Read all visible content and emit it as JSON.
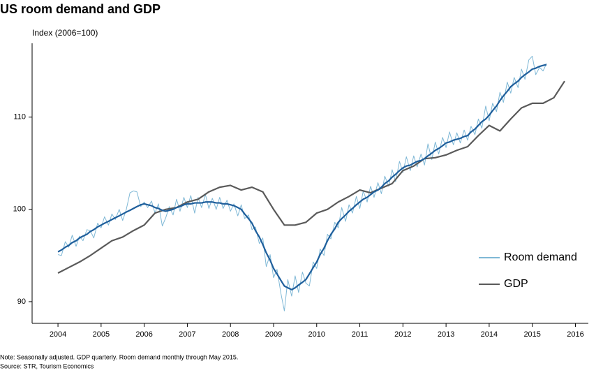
{
  "chart_data": {
    "type": "line",
    "title": "US room demand and GDP",
    "y_label": "Index (2006=100)",
    "notes": [
      "Note: Seasonally adjusted. GDP quarterly. Room demand monthly through May 2015.",
      "Source: STR, Tourism Economics"
    ],
    "xlim": [
      2003.4,
      2016.3
    ],
    "ylim": [
      87.65,
      118
    ],
    "xticks": [
      2004,
      2005,
      2006,
      2007,
      2008,
      2009,
      2010,
      2011,
      2012,
      2013,
      2014,
      2015,
      2016
    ],
    "yticks": [
      90,
      100,
      110
    ],
    "grid": false,
    "legend": "right",
    "series": [
      {
        "name": "Room demand",
        "color": "#7fb8d6",
        "width": 1,
        "x": [
          2004,
          2004.08,
          2004.17,
          2004.25,
          2004.33,
          2004.42,
          2004.5,
          2004.58,
          2004.67,
          2004.75,
          2004.83,
          2004.92,
          2005,
          2005.08,
          2005.17,
          2005.25,
          2005.33,
          2005.42,
          2005.5,
          2005.58,
          2005.67,
          2005.75,
          2005.83,
          2005.92,
          2006,
          2006.08,
          2006.17,
          2006.25,
          2006.33,
          2006.42,
          2006.5,
          2006.58,
          2006.67,
          2006.75,
          2006.83,
          2006.92,
          2007,
          2007.08,
          2007.17,
          2007.25,
          2007.33,
          2007.42,
          2007.5,
          2007.58,
          2007.67,
          2007.75,
          2007.83,
          2007.92,
          2008,
          2008.08,
          2008.17,
          2008.25,
          2008.33,
          2008.42,
          2008.5,
          2008.58,
          2008.67,
          2008.75,
          2008.83,
          2008.92,
          2009,
          2009.08,
          2009.17,
          2009.25,
          2009.33,
          2009.42,
          2009.5,
          2009.58,
          2009.67,
          2009.75,
          2009.83,
          2009.92,
          2010,
          2010.08,
          2010.17,
          2010.25,
          2010.33,
          2010.42,
          2010.5,
          2010.58,
          2010.67,
          2010.75,
          2010.83,
          2010.92,
          2011,
          2011.08,
          2011.17,
          2011.25,
          2011.33,
          2011.42,
          2011.5,
          2011.58,
          2011.67,
          2011.75,
          2011.83,
          2011.92,
          2012,
          2012.08,
          2012.17,
          2012.25,
          2012.33,
          2012.42,
          2012.5,
          2012.58,
          2012.67,
          2012.75,
          2012.83,
          2012.92,
          2013,
          2013.08,
          2013.17,
          2013.25,
          2013.33,
          2013.42,
          2013.5,
          2013.58,
          2013.67,
          2013.75,
          2013.83,
          2013.92,
          2014,
          2014.08,
          2014.17,
          2014.25,
          2014.33,
          2014.42,
          2014.5,
          2014.58,
          2014.67,
          2014.75,
          2014.83,
          2014.92,
          2015,
          2015.08,
          2015.17,
          2015.25,
          2015.33
        ],
        "values": [
          95.1,
          95.0,
          96.5,
          95.9,
          97.2,
          96.0,
          97.1,
          96.6,
          97.8,
          97.7,
          96.9,
          98.5,
          98.0,
          99.2,
          98.3,
          99.5,
          98.9,
          100.0,
          98.8,
          99.9,
          101.8,
          102.0,
          101.9,
          100.3,
          100.8,
          100.2,
          100.9,
          99.6,
          100.6,
          98.2,
          99.1,
          100.3,
          99.4,
          101.1,
          99.8,
          101.3,
          100.2,
          101.5,
          99.6,
          101.3,
          100.2,
          101.6,
          100.1,
          101.2,
          100.0,
          101.3,
          100.1,
          101.0,
          99.8,
          100.6,
          99.3,
          100.5,
          99.0,
          99.4,
          97.8,
          98.1,
          96.3,
          96.9,
          93.8,
          95.1,
          92.6,
          93.5,
          90.9,
          89.0,
          92.4,
          90.6,
          92.8,
          91.0,
          93.2,
          92.0,
          91.7,
          94.3,
          93.6,
          95.7,
          95.0,
          97.3,
          96.8,
          98.6,
          98.0,
          100.2,
          98.7,
          100.5,
          99.6,
          101.4,
          100.1,
          102.0,
          100.8,
          102.5,
          101.3,
          102.9,
          101.7,
          103.6,
          102.5,
          104.3,
          103.0,
          105.2,
          104.0,
          105.7,
          104.2,
          105.8,
          104.6,
          106.0,
          104.8,
          107.1,
          105.4,
          107.3,
          106.0,
          107.8,
          106.7,
          108.4,
          107.0,
          108.3,
          107.2,
          108.6,
          107.5,
          109.0,
          108.1,
          109.8,
          108.8,
          111.2,
          109.6,
          111.5,
          110.6,
          112.7,
          111.6,
          113.8,
          112.6,
          114.3,
          113.2,
          115.2,
          114.1,
          116.2,
          116.6,
          114.6,
          115.4,
          115.0,
          115.8
        ]
      },
      {
        "name": "GDP",
        "color": "#5a5a5a",
        "width": 2.2,
        "x": [
          2004,
          2004.25,
          2004.5,
          2004.75,
          2005,
          2005.25,
          2005.5,
          2005.75,
          2006,
          2006.25,
          2006.5,
          2006.75,
          2007,
          2007.25,
          2007.5,
          2007.75,
          2008,
          2008.25,
          2008.5,
          2008.75,
          2009,
          2009.25,
          2009.5,
          2009.75,
          2010,
          2010.25,
          2010.5,
          2010.75,
          2011,
          2011.25,
          2011.5,
          2011.75,
          2012,
          2012.25,
          2012.5,
          2012.75,
          2013,
          2013.25,
          2013.5,
          2013.75,
          2014,
          2014.25,
          2014.5,
          2014.75,
          2015,
          2015.25,
          2015.5,
          2015.75
        ],
        "values": [
          93.1,
          93.7,
          94.3,
          95.0,
          95.8,
          96.6,
          97.0,
          97.7,
          98.3,
          99.6,
          100.0,
          100.2,
          100.8,
          101.1,
          101.9,
          102.4,
          102.6,
          102.1,
          102.4,
          101.9,
          100.0,
          98.3,
          98.3,
          98.6,
          99.6,
          100.0,
          100.8,
          101.4,
          102.1,
          101.8,
          102.3,
          102.8,
          104.2,
          104.7,
          105.5,
          105.6,
          105.9,
          106.4,
          106.8,
          108.0,
          109.1,
          108.5,
          109.8,
          111.0,
          111.5,
          111.5,
          112.1,
          113.9
        ]
      },
      {
        "color": "#1f5f9c",
        "width": 2.2,
        "x": [
          2004,
          2004.08,
          2004.17,
          2004.25,
          2004.33,
          2004.42,
          2004.5,
          2004.58,
          2004.67,
          2004.75,
          2004.83,
          2004.92,
          2005,
          2005.08,
          2005.17,
          2005.25,
          2005.33,
          2005.42,
          2005.5,
          2005.58,
          2005.67,
          2005.75,
          2005.83,
          2005.92,
          2006,
          2006.08,
          2006.17,
          2006.25,
          2006.33,
          2006.42,
          2006.5,
          2006.58,
          2006.67,
          2006.75,
          2006.83,
          2006.92,
          2007,
          2007.08,
          2007.17,
          2007.25,
          2007.33,
          2007.42,
          2007.5,
          2007.58,
          2007.67,
          2007.75,
          2007.83,
          2007.92,
          2008,
          2008.08,
          2008.17,
          2008.25,
          2008.33,
          2008.42,
          2008.5,
          2008.58,
          2008.67,
          2008.75,
          2008.83,
          2008.92,
          2009,
          2009.08,
          2009.17,
          2009.25,
          2009.33,
          2009.42,
          2009.5,
          2009.58,
          2009.67,
          2009.75,
          2009.83,
          2009.92,
          2010,
          2010.08,
          2010.17,
          2010.25,
          2010.33,
          2010.42,
          2010.5,
          2010.58,
          2010.67,
          2010.75,
          2010.83,
          2010.92,
          2011,
          2011.08,
          2011.17,
          2011.25,
          2011.33,
          2011.42,
          2011.5,
          2011.58,
          2011.67,
          2011.75,
          2011.83,
          2011.92,
          2012,
          2012.08,
          2012.17,
          2012.25,
          2012.33,
          2012.42,
          2012.5,
          2012.58,
          2012.67,
          2012.75,
          2012.83,
          2012.92,
          2013,
          2013.08,
          2013.17,
          2013.25,
          2013.33,
          2013.42,
          2013.5,
          2013.58,
          2013.67,
          2013.75,
          2013.83,
          2013.92,
          2014,
          2014.08,
          2014.17,
          2014.25,
          2014.33,
          2014.42,
          2014.5,
          2014.58,
          2014.67,
          2014.75,
          2014.83,
          2014.92,
          2015,
          2015.08,
          2015.17,
          2015.25,
          2015.33
        ],
        "values": [
          95.4,
          95.6,
          95.9,
          96.1,
          96.4,
          96.6,
          96.9,
          97.1,
          97.3,
          97.6,
          97.8,
          98.1,
          98.3,
          98.5,
          98.7,
          98.9,
          99.1,
          99.3,
          99.5,
          99.7,
          99.9,
          100.1,
          100.3,
          100.5,
          100.6,
          100.5,
          100.4,
          100.2,
          100.1,
          99.9,
          99.8,
          99.9,
          100.0,
          100.2,
          100.3,
          100.5,
          100.6,
          100.6,
          100.7,
          100.7,
          100.7,
          100.8,
          100.8,
          100.8,
          100.7,
          100.7,
          100.6,
          100.6,
          100.5,
          100.4,
          100.2,
          100.0,
          99.5,
          99.0,
          98.5,
          97.7,
          97.0,
          96.2,
          95.3,
          94.5,
          93.6,
          93.0,
          92.3,
          91.7,
          91.5,
          91.3,
          91.5,
          91.8,
          92.1,
          92.4,
          93.0,
          93.7,
          94.3,
          95.1,
          95.8,
          96.6,
          97.3,
          97.9,
          98.6,
          99.0,
          99.4,
          99.8,
          100.1,
          100.5,
          100.8,
          101.1,
          101.3,
          101.6,
          101.9,
          102.1,
          102.4,
          102.8,
          103.1,
          103.5,
          103.8,
          104.2,
          104.5,
          104.7,
          104.8,
          105.0,
          105.2,
          105.3,
          105.5,
          105.8,
          106.1,
          106.4,
          106.6,
          106.9,
          107.2,
          107.3,
          107.5,
          107.6,
          107.7,
          107.9,
          108.0,
          108.4,
          108.7,
          109.1,
          109.5,
          109.8,
          110.2,
          110.7,
          111.2,
          111.8,
          112.3,
          112.8,
          113.3,
          113.6,
          113.9,
          114.3,
          114.6,
          114.9,
          115.2,
          115.3,
          115.5,
          115.6,
          115.7
        ]
      }
    ]
  }
}
